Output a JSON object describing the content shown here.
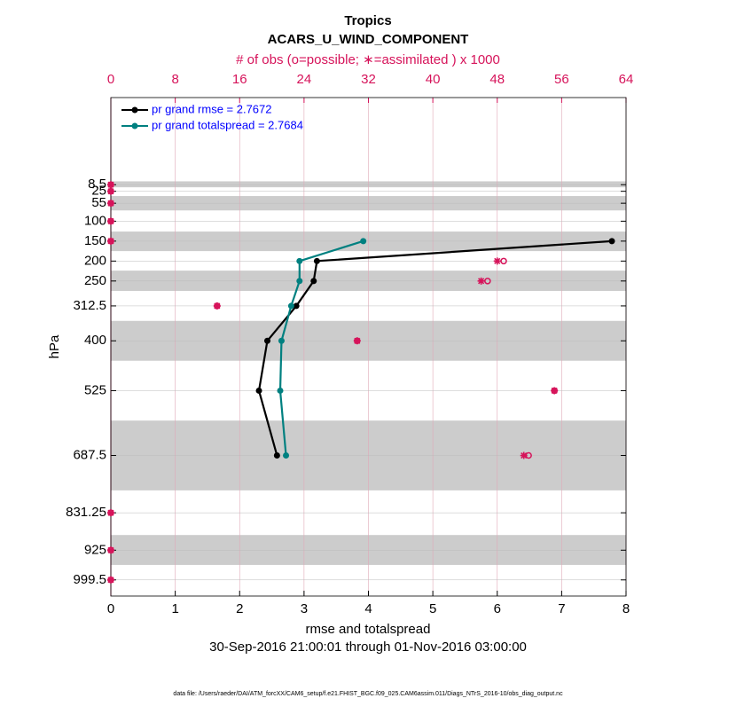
{
  "chart_data": {
    "type": "line",
    "title": "Tropics",
    "subtitle": "ACARS_U_WIND_COMPONENT",
    "x2_label": "# of obs (o=possible; ∗=assimilated ) x 1000",
    "x_label": "rmse and totalspread",
    "y_label": "hPa",
    "date_range": "30-Sep-2016 21:00:01 through 01-Nov-2016 03:00:00",
    "footer": "data file: /Users/raeder/DAI/ATM_forcXX/CAM6_setup/f.e21.FHIST_BGC.f09_025.CAM6assim.011/Diags_NTrS_2016-10/obs_diag_output.nc",
    "levels": [
      8.5,
      25,
      55,
      100,
      150,
      200,
      250,
      312.5,
      400,
      525,
      687.5,
      831.25,
      925,
      999.5
    ],
    "xlim": [
      0,
      8
    ],
    "xticks": [
      0,
      1,
      2,
      3,
      4,
      5,
      6,
      7,
      8
    ],
    "x2lim": [
      0,
      64
    ],
    "x2ticks": [
      0,
      8,
      16,
      24,
      32,
      40,
      48,
      56,
      64
    ],
    "ylim": [
      -210,
      1040
    ],
    "yticks": [
      8.5,
      25,
      55,
      100,
      150,
      200,
      250,
      312.5,
      400,
      525,
      687.5,
      831.25,
      925,
      999.5
    ],
    "bands": [
      [
        0,
        15
      ],
      [
        37,
        73
      ],
      [
        126,
        175
      ],
      [
        224,
        275
      ],
      [
        350,
        450
      ],
      [
        600,
        775
      ],
      [
        887,
        962
      ]
    ],
    "legend_position": "upper-left",
    "series": [
      {
        "name": "pr grand rmse = 2.7672",
        "color": "#000000",
        "values": [
          null,
          null,
          null,
          null,
          7.78,
          3.2,
          3.15,
          2.88,
          2.43,
          2.3,
          2.58,
          null,
          null,
          null
        ]
      },
      {
        "name": "pr grand totalspread = 2.7684",
        "color": "#008080",
        "values": [
          null,
          null,
          null,
          null,
          3.92,
          2.93,
          2.93,
          2.8,
          2.65,
          2.63,
          2.72,
          null,
          null,
          null
        ]
      }
    ],
    "obs_color": "#d6135a",
    "obs_possible": [
      0,
      0,
      0,
      0,
      0,
      48.8,
      46.8,
      13.2,
      30.6,
      55.1,
      51.9,
      0,
      0,
      0
    ],
    "obs_assimilated": [
      0,
      0,
      0,
      0,
      0,
      48.0,
      46.0,
      13.2,
      30.6,
      55.1,
      51.3,
      0,
      0,
      0
    ]
  }
}
